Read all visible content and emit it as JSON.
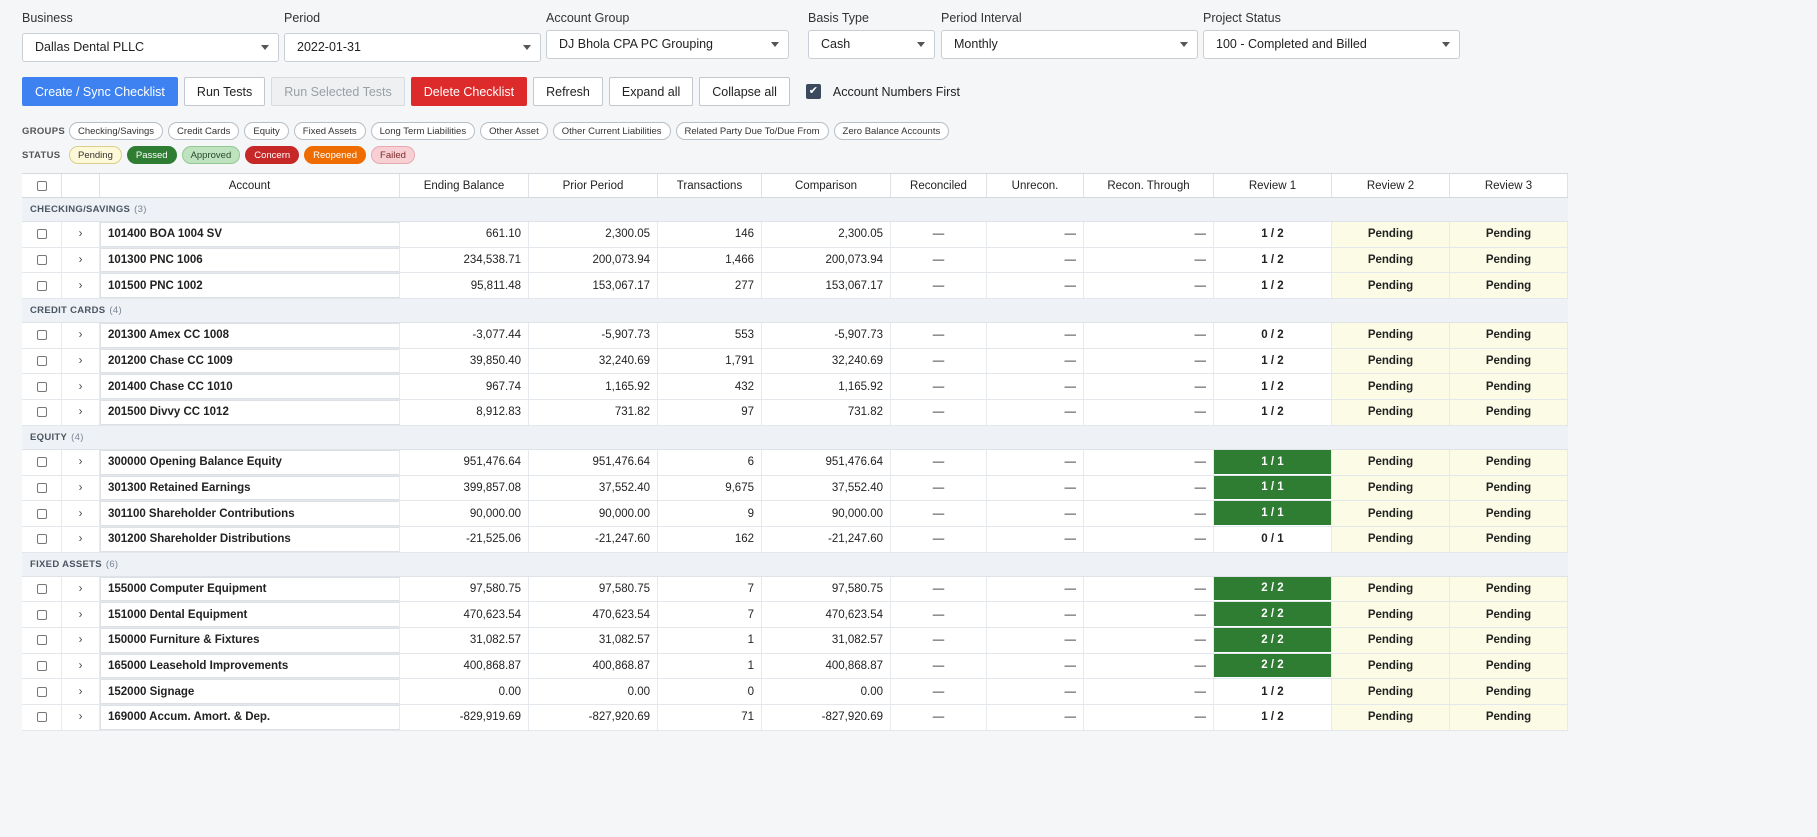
{
  "filters": {
    "business": {
      "label": "Business",
      "value": "Dallas Dental PLLC"
    },
    "period": {
      "label": "Period",
      "value": "2022-01-31"
    },
    "account_group": {
      "label": "Account Group",
      "value": "DJ Bhola CPA PC Grouping"
    },
    "basis_type": {
      "label": "Basis Type",
      "value": "Cash"
    },
    "period_interval": {
      "label": "Period Interval",
      "value": "Monthly"
    },
    "project_status": {
      "label": "Project Status",
      "value": "100 - Completed and Billed"
    }
  },
  "toolbar": {
    "create_sync": "Create / Sync Checklist",
    "run_tests": "Run Tests",
    "run_selected": "Run Selected Tests",
    "delete_checklist": "Delete Checklist",
    "refresh": "Refresh",
    "expand_all": "Expand all",
    "collapse_all": "Collapse all",
    "account_numbers_first": "Account Numbers First",
    "check_glyph": "✔"
  },
  "groups_label": "GROUPS",
  "groups": [
    "Checking/Savings",
    "Credit Cards",
    "Equity",
    "Fixed Assets",
    "Long Term Liabilities",
    "Other Asset",
    "Other Current Liabilities",
    "Related Party Due To/Due From",
    "Zero Balance Accounts"
  ],
  "status_label": "STATUS",
  "statuses": [
    {
      "label": "Pending",
      "bg": "#fdf8d8",
      "fg": "#333333",
      "border": "#d9cf8a"
    },
    {
      "label": "Passed",
      "bg": "#2e7d32",
      "fg": "#ffffff",
      "border": "#2e7d32"
    },
    {
      "label": "Approved",
      "bg": "#bfe3bf",
      "fg": "#2a4a2a",
      "border": "#93c893"
    },
    {
      "label": "Concern",
      "bg": "#c62828",
      "fg": "#ffffff",
      "border": "#c62828"
    },
    {
      "label": "Reopened",
      "bg": "#ef6c00",
      "fg": "#ffffff",
      "border": "#ef6c00"
    },
    {
      "label": "Failed",
      "bg": "#f8d0d4",
      "fg": "#7a2a2a",
      "border": "#e6a9af"
    }
  ],
  "table": {
    "columns": {
      "account": "Account",
      "ending": "Ending Balance",
      "prior": "Prior Period",
      "transactions": "Transactions",
      "comparison": "Comparison",
      "reconciled": "Reconciled",
      "unrecon": "Unrecon.",
      "recon_through": "Recon. Through",
      "review1": "Review 1",
      "review2": "Review 2",
      "review3": "Review 3"
    },
    "dash": "—",
    "expand_glyph": "›",
    "groups": [
      {
        "name": "CHECKING/SAVINGS",
        "count": "(3)",
        "rows": [
          {
            "account": "101400 BOA 1004 SV",
            "ending": "661.10",
            "prior": "2,300.05",
            "tx": "146",
            "cmp": "2,300.05",
            "r1": "1 / 2",
            "r1_passed": false,
            "r2": "Pending",
            "r3": "Pending"
          },
          {
            "account": "101300 PNC 1006",
            "ending": "234,538.71",
            "prior": "200,073.94",
            "tx": "1,466",
            "cmp": "200,073.94",
            "r1": "1 / 2",
            "r1_passed": false,
            "r2": "Pending",
            "r3": "Pending"
          },
          {
            "account": "101500 PNC 1002",
            "ending": "95,811.48",
            "prior": "153,067.17",
            "tx": "277",
            "cmp": "153,067.17",
            "r1": "1 / 2",
            "r1_passed": false,
            "r2": "Pending",
            "r3": "Pending"
          }
        ]
      },
      {
        "name": "CREDIT CARDS",
        "count": "(4)",
        "rows": [
          {
            "account": "201300 Amex CC 1008",
            "ending": "-3,077.44",
            "prior": "-5,907.73",
            "tx": "553",
            "cmp": "-5,907.73",
            "r1": "0 / 2",
            "r1_passed": false,
            "r2": "Pending",
            "r3": "Pending"
          },
          {
            "account": "201200 Chase CC 1009",
            "ending": "39,850.40",
            "prior": "32,240.69",
            "tx": "1,791",
            "cmp": "32,240.69",
            "r1": "1 / 2",
            "r1_passed": false,
            "r2": "Pending",
            "r3": "Pending"
          },
          {
            "account": "201400 Chase CC 1010",
            "ending": "967.74",
            "prior": "1,165.92",
            "tx": "432",
            "cmp": "1,165.92",
            "r1": "1 / 2",
            "r1_passed": false,
            "r2": "Pending",
            "r3": "Pending"
          },
          {
            "account": "201500 Divvy CC 1012",
            "ending": "8,912.83",
            "prior": "731.82",
            "tx": "97",
            "cmp": "731.82",
            "r1": "1 / 2",
            "r1_passed": false,
            "r2": "Pending",
            "r3": "Pending"
          }
        ]
      },
      {
        "name": "EQUITY",
        "count": "(4)",
        "rows": [
          {
            "account": "300000 Opening Balance Equity",
            "ending": "951,476.64",
            "prior": "951,476.64",
            "tx": "6",
            "cmp": "951,476.64",
            "r1": "1 / 1",
            "r1_passed": true,
            "r2": "Pending",
            "r3": "Pending"
          },
          {
            "account": "301300 Retained Earnings",
            "ending": "399,857.08",
            "prior": "37,552.40",
            "tx": "9,675",
            "cmp": "37,552.40",
            "r1": "1 / 1",
            "r1_passed": true,
            "r2": "Pending",
            "r3": "Pending"
          },
          {
            "account": "301100 Shareholder Contributions",
            "ending": "90,000.00",
            "prior": "90,000.00",
            "tx": "9",
            "cmp": "90,000.00",
            "r1": "1 / 1",
            "r1_passed": true,
            "r2": "Pending",
            "r3": "Pending"
          },
          {
            "account": "301200 Shareholder Distributions",
            "ending": "-21,525.06",
            "prior": "-21,247.60",
            "tx": "162",
            "cmp": "-21,247.60",
            "r1": "0 / 1",
            "r1_passed": false,
            "r2": "Pending",
            "r3": "Pending"
          }
        ]
      },
      {
        "name": "FIXED ASSETS",
        "count": "(6)",
        "rows": [
          {
            "account": "155000 Computer Equipment",
            "ending": "97,580.75",
            "prior": "97,580.75",
            "tx": "7",
            "cmp": "97,580.75",
            "r1": "2 / 2",
            "r1_passed": true,
            "r2": "Pending",
            "r3": "Pending"
          },
          {
            "account": "151000 Dental Equipment",
            "ending": "470,623.54",
            "prior": "470,623.54",
            "tx": "7",
            "cmp": "470,623.54",
            "r1": "2 / 2",
            "r1_passed": true,
            "r2": "Pending",
            "r3": "Pending"
          },
          {
            "account": "150000 Furniture & Fixtures",
            "ending": "31,082.57",
            "prior": "31,082.57",
            "tx": "1",
            "cmp": "31,082.57",
            "r1": "2 / 2",
            "r1_passed": true,
            "r2": "Pending",
            "r3": "Pending"
          },
          {
            "account": "165000 Leasehold Improvements",
            "ending": "400,868.87",
            "prior": "400,868.87",
            "tx": "1",
            "cmp": "400,868.87",
            "r1": "2 / 2",
            "r1_passed": true,
            "r2": "Pending",
            "r3": "Pending"
          },
          {
            "account": "152000 Signage",
            "ending": "0.00",
            "prior": "0.00",
            "tx": "0",
            "cmp": "0.00",
            "r1": "1 / 2",
            "r1_passed": false,
            "r2": "Pending",
            "r3": "Pending"
          },
          {
            "account": "169000 Accum. Amort. & Dep.",
            "ending": "-829,919.69",
            "prior": "-827,920.69",
            "tx": "71",
            "cmp": "-827,920.69",
            "r1": "1 / 2",
            "r1_passed": false,
            "r2": "Pending",
            "r3": "Pending"
          }
        ]
      }
    ]
  }
}
